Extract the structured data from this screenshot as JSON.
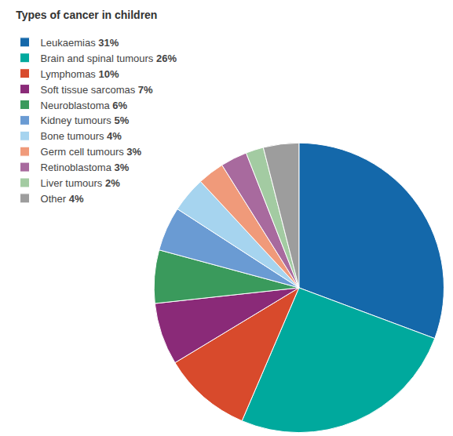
{
  "chart_data": {
    "type": "pie",
    "title": "Types of cancer in children",
    "categories": [
      "Leukaemias",
      "Brain and spinal tumours",
      "Lymphomas",
      "Soft tissue sarcomas",
      "Neuroblastoma",
      "Kidney tumours",
      "Bone tumours",
      "Germ cell tumours",
      "Retinoblastoma",
      "Liver tumours",
      "Other"
    ],
    "values": [
      31,
      26,
      10,
      7,
      6,
      5,
      4,
      3,
      3,
      2,
      4
    ],
    "value_labels": [
      "31%",
      "26%",
      "10%",
      "7%",
      "6%",
      "5%",
      "4%",
      "3%",
      "3%",
      "2%",
      "4%"
    ],
    "colors": [
      "#1468aa",
      "#00a99d",
      "#d84a2c",
      "#8a2a78",
      "#3a9a5c",
      "#6a9bd3",
      "#a6d4ef",
      "#f09a7a",
      "#a86a9e",
      "#a3cba2",
      "#9d9d9d"
    ],
    "legend": "left",
    "data_labels": false
  }
}
